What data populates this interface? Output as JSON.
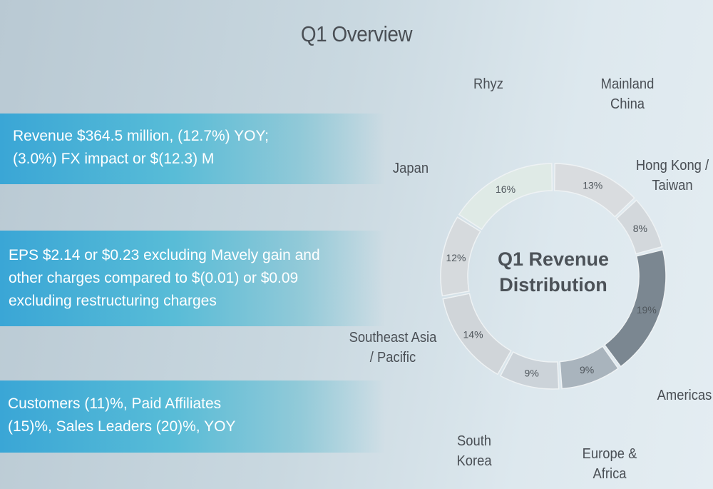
{
  "title": "Q1 Overview",
  "highlights": [
    {
      "lines": [
        "Revenue $364.5 million, (12.7%) YOY;",
        "(3.0%) FX impact or $(12.3) M"
      ]
    },
    {
      "lines": [
        "EPS $2.14 or $0.23 excluding Mavely gain and",
        "other charges compared to $(0.01) or $0.09",
        "excluding restructuring charges"
      ]
    },
    {
      "lines": [
        "Customers (11)%, Paid Affiliates",
        "(15)%, Sales Leaders (20)%, YOY"
      ]
    }
  ],
  "chart_data": {
    "type": "pie",
    "style": "donut",
    "title": "Q1 Revenue Distribution",
    "slices": [
      {
        "name": "Mainland China",
        "value": 13,
        "label": "13%",
        "color": "#d9dcdf"
      },
      {
        "name": "Hong Kong / Taiwan",
        "value": 8,
        "label": "8%",
        "color": "#d3d8dc"
      },
      {
        "name": "Americas",
        "value": 19,
        "label": "19%",
        "color": "#7b8791"
      },
      {
        "name": "Europe & Africa",
        "value": 9,
        "label": "9%",
        "color": "#a9b4bd"
      },
      {
        "name": "South Korea",
        "value": 9,
        "label": "9%",
        "color": "#ccd3d9"
      },
      {
        "name": "Southeast Asia / Pacific",
        "value": 14,
        "label": "14%",
        "color": "#d0d5d9"
      },
      {
        "name": "Japan",
        "value": 12,
        "label": "12%",
        "color": "#d6dadd"
      },
      {
        "name": "Rhyz",
        "value": 16,
        "label": "16%",
        "color": "#dfeae6"
      }
    ]
  }
}
